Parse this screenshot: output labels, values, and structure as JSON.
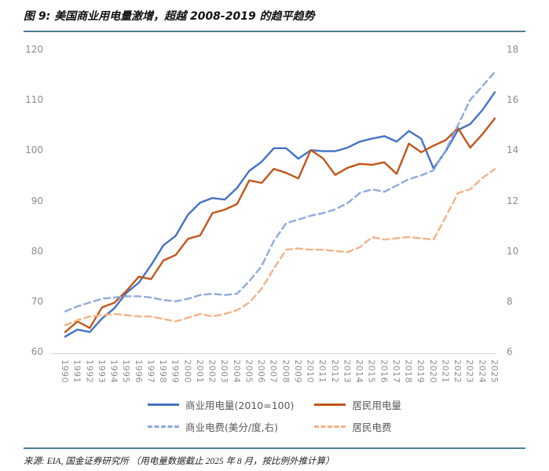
{
  "title": "图 9: 美国商业用电量激增，超越 2008-2019 的趋平趋势",
  "source": "来源: EIA, 国金证券研究所 （用电量数据截止 2025 年 8 月，按比例外推计算）",
  "colors": {
    "rule": "#4e7d93",
    "axis_line": "#d9d9d9",
    "tick_text": "#8c8c8c",
    "solid_blue": "#4472c4",
    "solid_orange": "#c0561c",
    "dashed_blue": "#8faadc",
    "dashed_orange": "#f5b183"
  },
  "chart_data": {
    "type": "line",
    "title": "美国商业用电量激增，超越 2008-2019 的趋平趋势",
    "x": [
      1990,
      1991,
      1992,
      1993,
      1994,
      1995,
      1996,
      1997,
      1998,
      1999,
      2000,
      2001,
      2002,
      2003,
      2004,
      2005,
      2006,
      2007,
      2008,
      2009,
      2010,
      2011,
      2012,
      2013,
      2014,
      2015,
      2016,
      2017,
      2018,
      2019,
      2020,
      2021,
      2022,
      2023,
      2024,
      2025
    ],
    "left_axis": {
      "ticks": [
        60,
        70,
        80,
        90,
        100,
        110,
        120
      ],
      "range": [
        60,
        120
      ]
    },
    "right_axis": {
      "ticks": [
        6,
        8,
        10,
        12,
        14,
        16,
        18
      ],
      "range": [
        6,
        18
      ]
    },
    "grid": false,
    "legend_position": "bottom",
    "series": [
      {
        "name": "商业用电量(2010=100)",
        "axis": "left",
        "style": "solid",
        "color": "#4472c4",
        "values": [
          63.0,
          64.4,
          63.9,
          66.6,
          68.6,
          71.7,
          73.7,
          77.2,
          81.1,
          83.0,
          87.2,
          89.6,
          90.5,
          90.2,
          92.5,
          95.9,
          97.7,
          100.4,
          100.4,
          98.3,
          100.0,
          99.8,
          99.8,
          100.5,
          101.7,
          102.3,
          102.8,
          101.7,
          103.8,
          102.3,
          96.4,
          99.8,
          104.0,
          105.2,
          108.0,
          111.5
        ]
      },
      {
        "name": "居民用电量",
        "axis": "left",
        "style": "solid",
        "color": "#c0561c",
        "values": [
          63.9,
          66.0,
          64.7,
          68.8,
          69.7,
          72.1,
          74.9,
          74.4,
          78.1,
          79.2,
          82.4,
          83.1,
          87.5,
          88.2,
          89.3,
          94.0,
          93.5,
          96.3,
          95.5,
          94.4,
          100.0,
          98.4,
          95.1,
          96.5,
          97.3,
          97.1,
          97.6,
          95.3,
          101.3,
          99.6,
          100.9,
          102.0,
          104.4,
          100.5,
          103.2,
          106.3
        ]
      },
      {
        "name": "商业电费(美分/度,右)",
        "axis": "right",
        "style": "dashed",
        "color": "#8faadc",
        "values": [
          7.6,
          7.8,
          7.95,
          8.1,
          8.15,
          8.2,
          8.2,
          8.15,
          8.05,
          8.0,
          8.1,
          8.25,
          8.3,
          8.25,
          8.3,
          8.8,
          9.4,
          10.4,
          11.1,
          11.25,
          11.4,
          11.5,
          11.65,
          11.9,
          12.3,
          12.45,
          12.35,
          12.6,
          12.85,
          13.0,
          13.2,
          14.0,
          15.0,
          16.0,
          16.55,
          17.1
        ]
      },
      {
        "name": "居民电费",
        "axis": "right",
        "style": "dashed",
        "color": "#f5b183",
        "values": [
          7.05,
          7.25,
          7.4,
          7.45,
          7.5,
          7.45,
          7.4,
          7.4,
          7.3,
          7.2,
          7.35,
          7.5,
          7.4,
          7.5,
          7.65,
          7.95,
          8.5,
          9.3,
          10.05,
          10.1,
          10.05,
          10.05,
          10.0,
          9.95,
          10.15,
          10.55,
          10.45,
          10.5,
          10.55,
          10.5,
          10.45,
          11.35,
          12.3,
          12.45,
          12.9,
          13.25
        ]
      }
    ]
  }
}
